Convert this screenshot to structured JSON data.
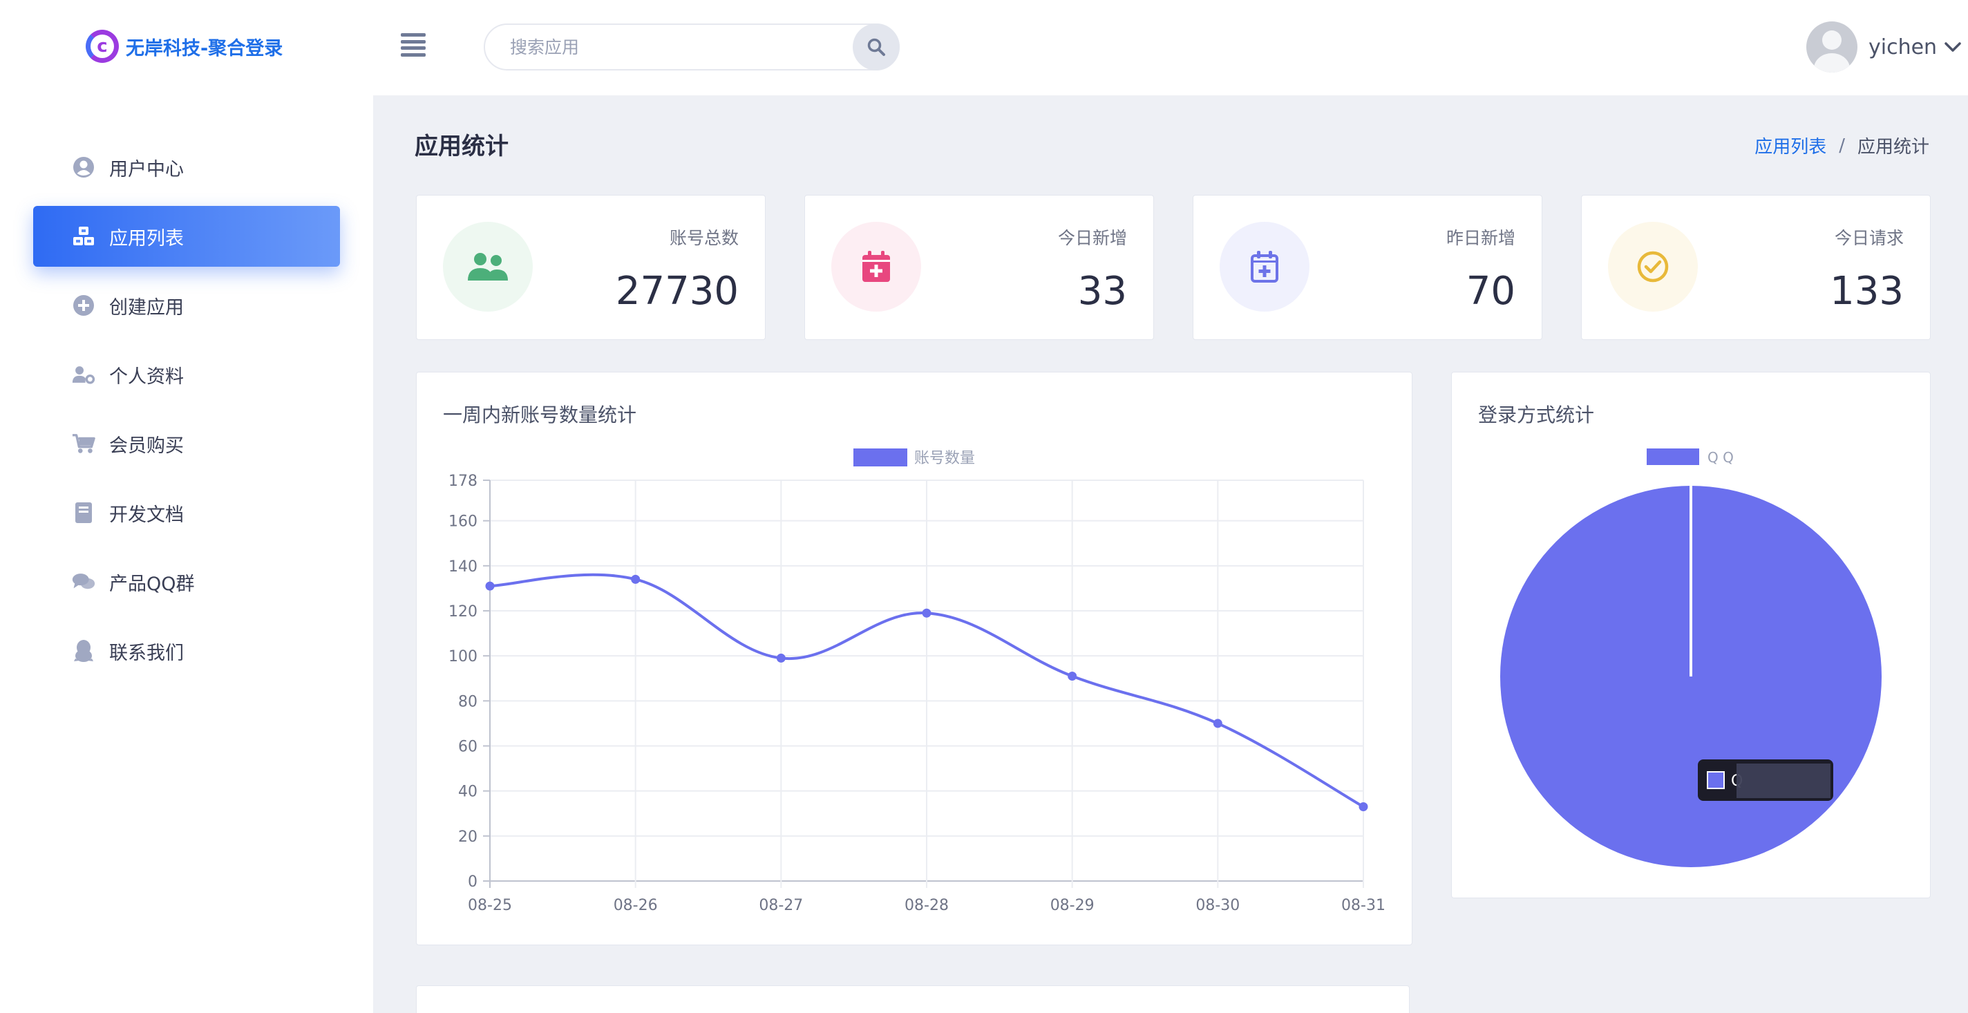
{
  "header": {
    "logo_text": "无岸科技-聚合登录",
    "search_placeholder": "搜索应用",
    "username": "yichen",
    "icons": {
      "menu": "hamburger-icon",
      "search": "search-icon",
      "dropdown": "chevron-down-icon"
    }
  },
  "sidebar": {
    "items": [
      {
        "label": "用户中心",
        "icon": "user-circle-icon",
        "active": false
      },
      {
        "label": "应用列表",
        "icon": "cubes-icon",
        "active": true
      },
      {
        "label": "创建应用",
        "icon": "plus-circle-icon",
        "active": false
      },
      {
        "label": "个人资料",
        "icon": "user-gear-icon",
        "active": false
      },
      {
        "label": "会员购买",
        "icon": "cart-icon",
        "active": false
      },
      {
        "label": "开发文档",
        "icon": "book-icon",
        "active": false
      },
      {
        "label": "产品QQ群",
        "icon": "chat-icon",
        "active": false
      },
      {
        "label": "联系我们",
        "icon": "qq-penguin-icon",
        "active": false
      }
    ]
  },
  "page": {
    "title": "应用统计",
    "breadcrumb": {
      "parent": "应用列表",
      "separator": "/",
      "current": "应用统计"
    }
  },
  "stats": [
    {
      "label": "账号总数",
      "value": "27730",
      "icon": "users-icon",
      "color": "#4caf7a",
      "bg": "#eef8f1"
    },
    {
      "label": "今日新增",
      "value": "33",
      "icon": "calendar-plus-icon",
      "color": "#e8477f",
      "bg": "#fdeef3"
    },
    {
      "label": "昨日新增",
      "value": "70",
      "icon": "calendar-plus-outline-icon",
      "color": "#6d73e8",
      "bg": "#f0f1fd"
    },
    {
      "label": "今日请求",
      "value": "133",
      "icon": "check-circle-icon",
      "color": "#e8b93a",
      "bg": "#fdf8ea"
    }
  ],
  "charts": {
    "line_title": "一周内新账号数量统计",
    "pie_title": "登录方式统计",
    "tooltip_text": "Q"
  },
  "chart_data": [
    {
      "type": "line",
      "title": "一周内新账号数量统计",
      "series": [
        {
          "name": "账号数量",
          "values": [
            131,
            134,
            99,
            119,
            91,
            70,
            33
          ]
        }
      ],
      "categories": [
        "08-25",
        "08-26",
        "08-27",
        "08-28",
        "08-29",
        "08-30",
        "08-31"
      ],
      "y_ticks": [
        "0",
        "20",
        "40",
        "60",
        "80",
        "100",
        "120",
        "140",
        "160",
        "178"
      ],
      "ylim": [
        0,
        178
      ],
      "grid": true,
      "legend": "top-center",
      "color": "#6b70ee"
    },
    {
      "type": "pie",
      "title": "登录方式统计",
      "slices": [
        {
          "name": "Q Q",
          "value": 100
        }
      ],
      "legend": "top-center",
      "color": "#6b70ee"
    }
  ]
}
